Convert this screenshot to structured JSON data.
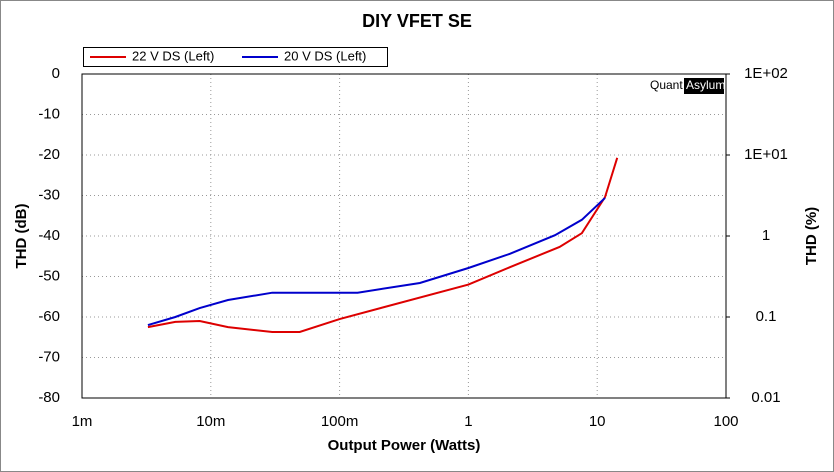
{
  "chart_data": {
    "type": "line",
    "title": "DIY VFET SE",
    "xlabel": "Output Power (Watts)",
    "ylabel": "THD (dB)",
    "y2label": "THD (%)",
    "watermark": [
      "Quant",
      "Asylum"
    ],
    "xscale": "log",
    "xlim": [
      0.001,
      100
    ],
    "xticks": [
      {
        "value": 0.001,
        "label": "1m"
      },
      {
        "value": 0.01,
        "label": "10m"
      },
      {
        "value": 0.1,
        "label": "100m"
      },
      1,
      10,
      100
    ],
    "ylim": [
      -80,
      0
    ],
    "yticks": [
      0,
      -10,
      -20,
      -30,
      -40,
      -50,
      -60,
      -70,
      -80
    ],
    "y2scale": "log",
    "y2lim": [
      0.01,
      100
    ],
    "y2ticks": [
      {
        "value": 100,
        "label": "1E+02"
      },
      {
        "value": 10,
        "label": "1E+01"
      },
      1,
      0.1,
      0.01
    ],
    "grid": true,
    "legend": "top-left",
    "series": [
      {
        "name": "22 V DS (Left)",
        "color": "#dd0000",
        "x": [
          0.00325,
          0.0053,
          0.0082,
          0.0136,
          0.03,
          0.049,
          0.1,
          1,
          2.1,
          5.1,
          7.6,
          11.5,
          14.3
        ],
        "values": [
          -62.5,
          -61.2,
          -61,
          -62.5,
          -63.7,
          -63.7,
          -60.5,
          -52,
          -47.7,
          -42.7,
          -39.3,
          -30.4,
          -20.7
        ]
      },
      {
        "name": "20 V DS (Left)",
        "color": "#0000cc",
        "x": [
          0.00325,
          0.0053,
          0.0082,
          0.0136,
          0.03,
          0.049,
          0.138,
          0.42,
          1,
          2.1,
          4.7,
          7.6,
          11.5
        ],
        "values": [
          -62,
          -60,
          -57.8,
          -55.8,
          -54,
          -54,
          -54,
          -51.6,
          -47.9,
          -44.4,
          -39.8,
          -36,
          -30.6
        ]
      }
    ]
  }
}
